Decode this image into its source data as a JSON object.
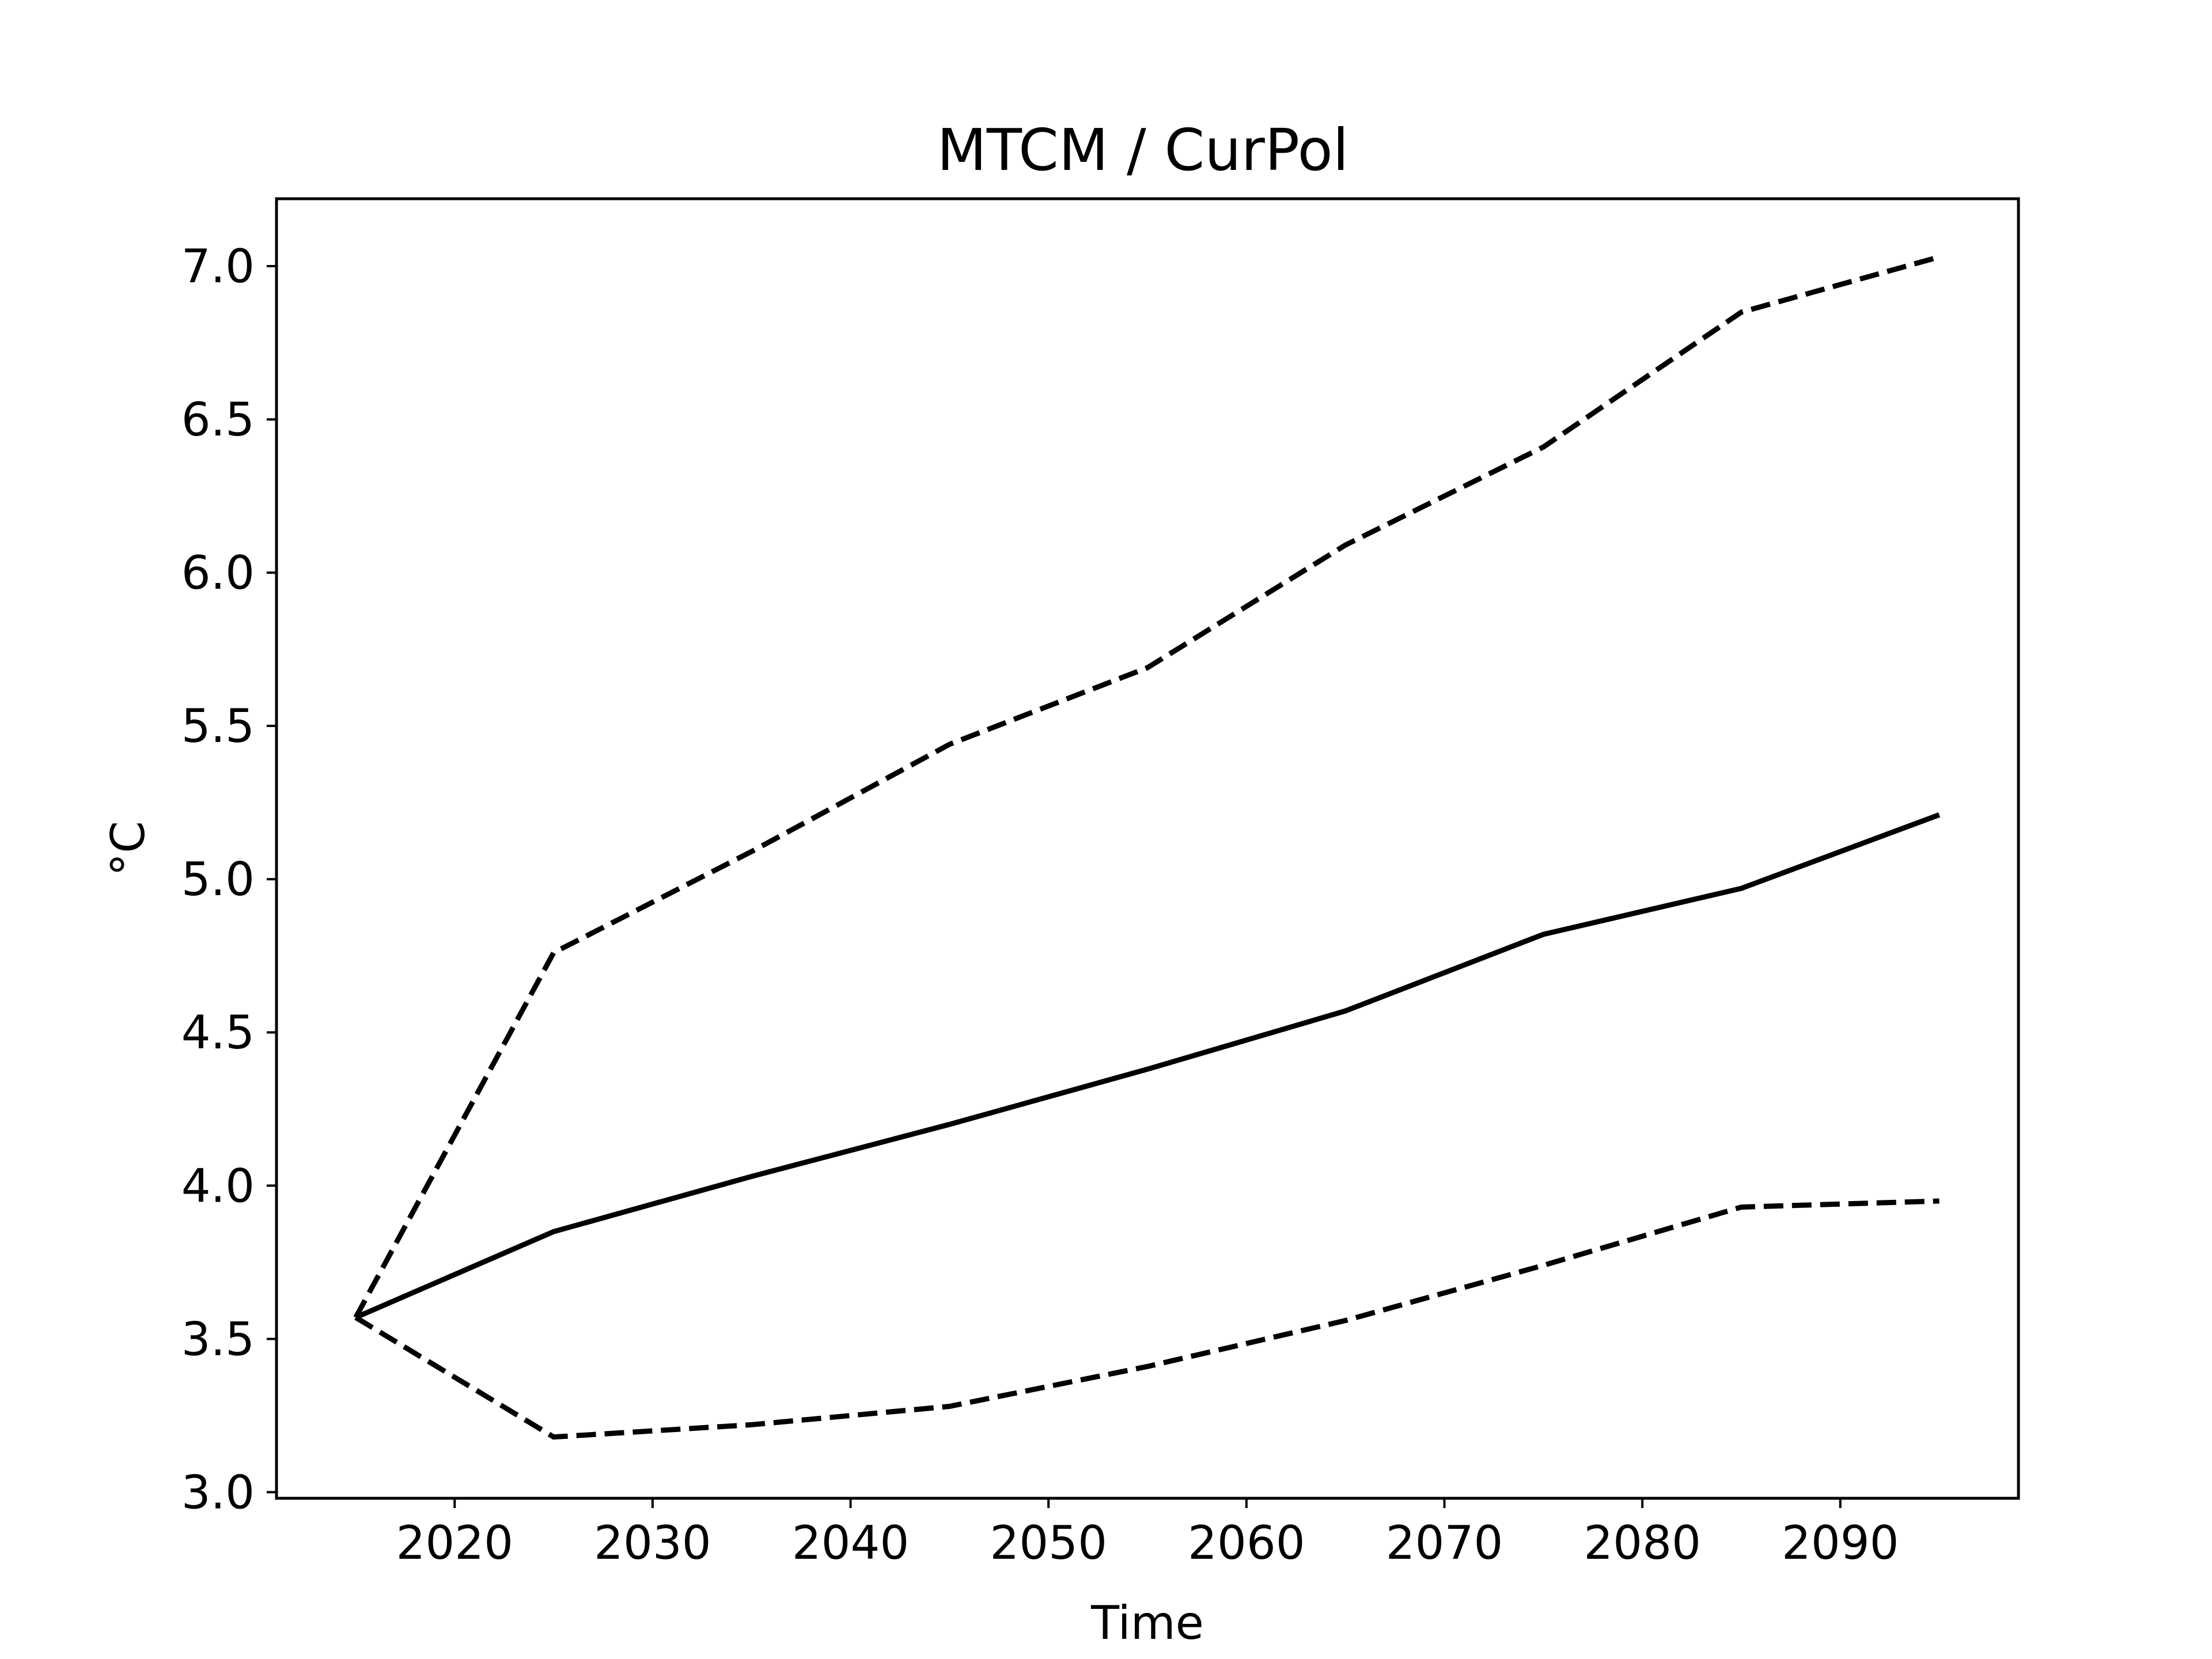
{
  "chart_data": {
    "type": "line",
    "title": "MTCM / CurPol",
    "xlabel": "Time",
    "ylabel": "°C",
    "xlim": [
      2011,
      2099
    ],
    "ylim": [
      2.98,
      7.22
    ],
    "xticks": [
      2020,
      2030,
      2040,
      2050,
      2060,
      2070,
      2080,
      2090
    ],
    "xtick_labels": [
      "2020",
      "2030",
      "2040",
      "2050",
      "2060",
      "2070",
      "2080",
      "2090"
    ],
    "yticks": [
      3.0,
      3.5,
      4.0,
      4.5,
      5.0,
      5.5,
      6.0,
      6.5,
      7.0
    ],
    "ytick_labels": [
      "3.0",
      "3.5",
      "4.0",
      "4.5",
      "5.0",
      "5.5",
      "6.0",
      "6.5",
      "7.0"
    ],
    "grid": false,
    "x": [
      2015,
      2025,
      2035,
      2045,
      2055,
      2065,
      2075,
      2085,
      2095
    ],
    "series": [
      {
        "style": "solid",
        "color": "#000000",
        "values": [
          3.57,
          3.85,
          4.03,
          4.2,
          4.38,
          4.57,
          4.82,
          4.97,
          5.21
        ]
      },
      {
        "style": "dashed",
        "color": "#000000",
        "values": [
          3.57,
          4.76,
          5.09,
          5.44,
          5.69,
          6.09,
          6.41,
          6.85,
          7.03
        ]
      },
      {
        "style": "dashed",
        "color": "#000000",
        "values": [
          3.57,
          3.18,
          3.22,
          3.28,
          3.41,
          3.56,
          3.74,
          3.93,
          3.95
        ]
      }
    ]
  }
}
